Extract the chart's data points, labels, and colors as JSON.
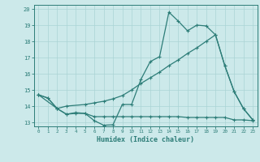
{
  "bg_color": "#cce9ea",
  "grid_color": "#aad4d5",
  "line_color": "#2d7d78",
  "xlabel": "Humidex (Indice chaleur)",
  "ylim": [
    13,
    20
  ],
  "xlim": [
    -0.5,
    23.5
  ],
  "yticks": [
    13,
    14,
    15,
    16,
    17,
    18,
    19,
    20
  ],
  "xticks": [
    0,
    1,
    2,
    3,
    4,
    5,
    6,
    7,
    8,
    9,
    10,
    11,
    12,
    13,
    14,
    15,
    16,
    17,
    18,
    19,
    20,
    21,
    22,
    23
  ],
  "line1_x": [
    0,
    1,
    2,
    3,
    4,
    5,
    6,
    7,
    8,
    9,
    10,
    11,
    12,
    13,
    14,
    15,
    16,
    17,
    18,
    19,
    20,
    21,
    22,
    23
  ],
  "line1_y": [
    14.7,
    14.5,
    13.85,
    13.5,
    13.6,
    13.55,
    13.1,
    12.82,
    12.85,
    14.1,
    14.1,
    15.65,
    16.75,
    17.05,
    19.8,
    19.25,
    18.65,
    19.0,
    18.95,
    18.4,
    16.5,
    14.9,
    13.85,
    13.15
  ],
  "line2_x": [
    0,
    1,
    2,
    3,
    4,
    5,
    6,
    7,
    8,
    9,
    10,
    11,
    12,
    13,
    14,
    15,
    16,
    17,
    18,
    19,
    20,
    21,
    22,
    23
  ],
  "line2_y": [
    14.7,
    14.5,
    13.85,
    13.5,
    13.55,
    13.55,
    13.35,
    13.35,
    13.35,
    13.35,
    13.35,
    13.35,
    13.35,
    13.35,
    13.35,
    13.35,
    13.3,
    13.3,
    13.3,
    13.3,
    13.3,
    13.15,
    13.15,
    13.1
  ],
  "line3_x": [
    0,
    2,
    3,
    5,
    6,
    7,
    8,
    9,
    10,
    11,
    12,
    13,
    14,
    15,
    16,
    17,
    18,
    19,
    20,
    21,
    22,
    23
  ],
  "line3_y": [
    14.7,
    13.85,
    14.0,
    14.1,
    14.2,
    14.3,
    14.45,
    14.65,
    15.0,
    15.4,
    15.75,
    16.1,
    16.5,
    16.85,
    17.25,
    17.6,
    18.0,
    18.4,
    16.5,
    14.9,
    13.85,
    13.15
  ]
}
